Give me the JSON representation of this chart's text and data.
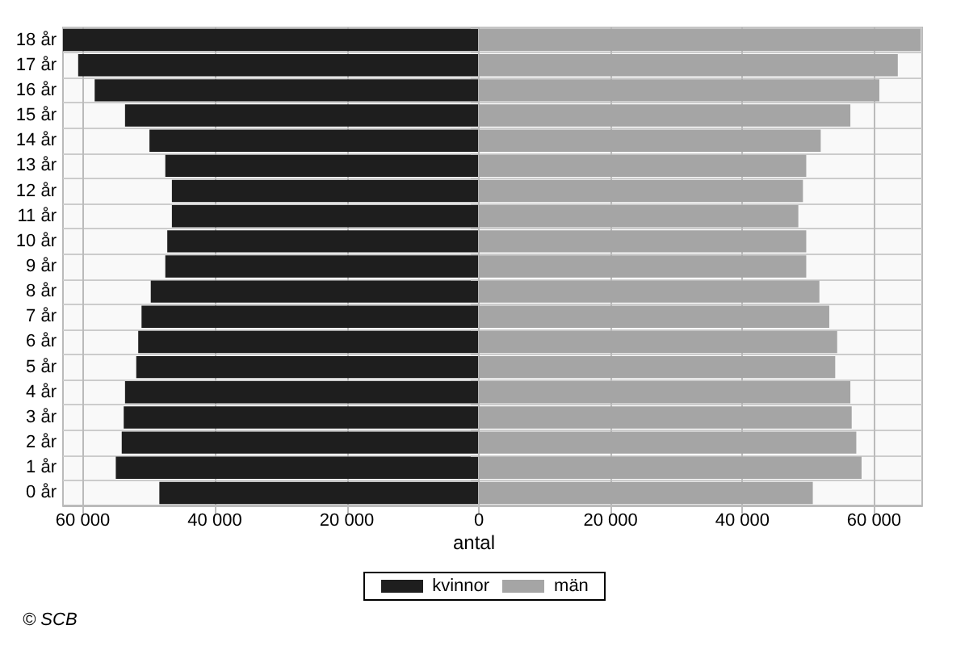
{
  "chart_data": [
    {
      "type": "bar",
      "orientation": "horizontal",
      "legend": "bottom",
      "grid": true,
      "categories": [
        "18 år",
        "17 år",
        "16 år",
        "15 år",
        "14 år",
        "13 år",
        "12 år",
        "11 år",
        "10 år",
        "9 år",
        "8 år",
        "7 år",
        "6 år",
        "5 år",
        "4 år",
        "3 år",
        "2 år",
        "1 år",
        "0 år"
      ],
      "series": [
        {
          "name": "kvinnor",
          "color": "#1e1e1e",
          "values": [
            63000,
            60700,
            58200,
            53600,
            49900,
            47500,
            46500,
            46500,
            47200,
            47500,
            49700,
            51100,
            51600,
            51900,
            53600,
            53800,
            54100,
            55000,
            48400
          ]
        }
      ],
      "xlim": [
        63000,
        0
      ],
      "xticks": [
        60000,
        40000,
        20000,
        {
          "value": 0,
          "label": null
        }
      ],
      "annotations": [
        "© SCB"
      ]
    },
    {
      "type": "bar",
      "orientation": "horizontal",
      "legend": "bottom",
      "grid": true,
      "tick_labels": "x",
      "xlabel": "antal",
      "categories": [
        null,
        null,
        null,
        null,
        null,
        null,
        null,
        null,
        null,
        null,
        null,
        null,
        null,
        null,
        null,
        null,
        null,
        null,
        null
      ],
      "series": [
        {
          "name": "män",
          "color": "#a5a5a5",
          "values": [
            67100,
            63600,
            60800,
            56400,
            51900,
            49700,
            49200,
            48500,
            49700,
            49700,
            51700,
            53200,
            54400,
            54100,
            56400,
            56600,
            57300,
            58100,
            50700
          ]
        }
      ],
      "xlim": [
        0,
        67300
      ],
      "xticks": [
        0,
        20000,
        40000,
        60000
      ]
    }
  ]
}
